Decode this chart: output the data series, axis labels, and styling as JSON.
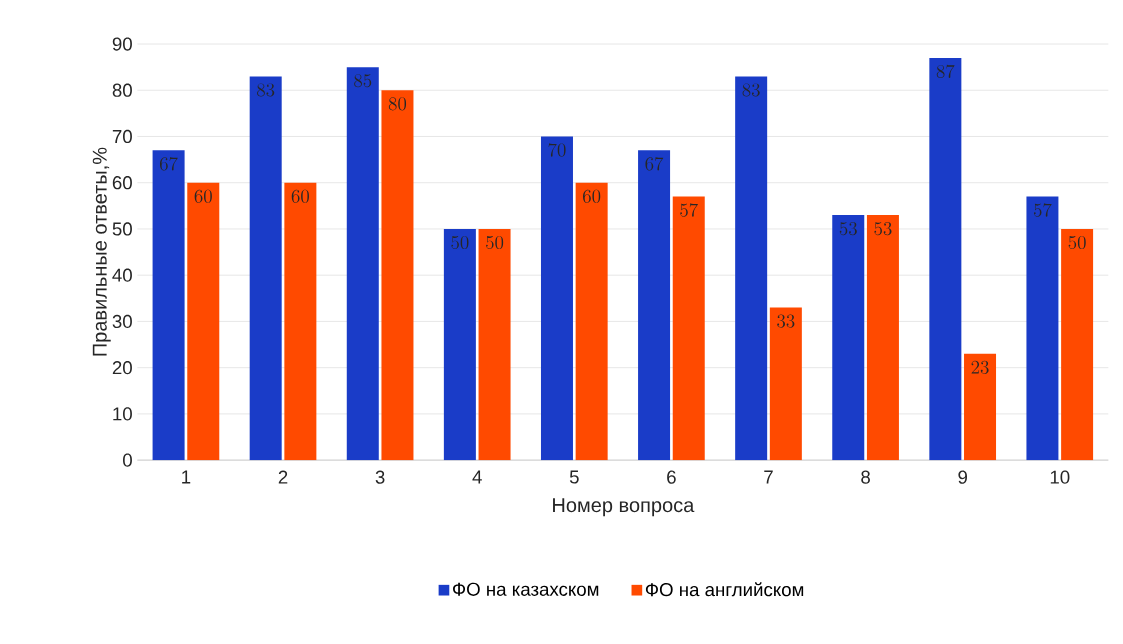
{
  "chart_data": {
    "type": "bar",
    "xlabel": "Номер вопроса",
    "ylabel": "Правильные ответы,%",
    "categories": [
      "1",
      "2",
      "3",
      "4",
      "5",
      "6",
      "7",
      "8",
      "9",
      "10"
    ],
    "series": [
      {
        "name": "ФО на казахском",
        "color": "#1a3cc8",
        "values": [
          67,
          83,
          85,
          50,
          70,
          67,
          83,
          53,
          87,
          57
        ]
      },
      {
        "name": "ФО на английском",
        "color": "#ff4a00",
        "values": [
          60,
          60,
          80,
          50,
          60,
          57,
          33,
          53,
          23,
          50
        ]
      }
    ],
    "ylim": [
      0,
      90
    ],
    "yticks": [
      0,
      10,
      20,
      30,
      40,
      50,
      60,
      70,
      80,
      90
    ],
    "grid": "y",
    "legend": "bottom",
    "data_labels": true
  }
}
